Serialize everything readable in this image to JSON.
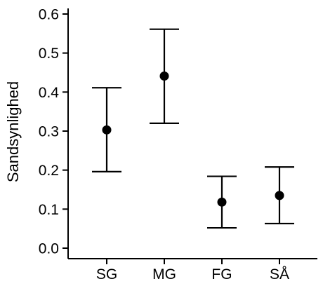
{
  "chart_data": {
    "type": "scatter",
    "title": "",
    "xlabel": "",
    "ylabel": "Sandsynlighed",
    "categories": [
      "SG",
      "MG",
      "FG",
      "SÅ"
    ],
    "series": [
      {
        "values": [
          0.303,
          0.441,
          0.118,
          0.135
        ],
        "lower": [
          0.196,
          0.32,
          0.052,
          0.063
        ],
        "upper": [
          0.411,
          0.561,
          0.184,
          0.208
        ]
      }
    ],
    "ylim": [
      0.0,
      0.6
    ],
    "yticks": [
      "0.0",
      "0.1",
      "0.2",
      "0.3",
      "0.4",
      "0.5",
      "0.6"
    ],
    "grid": false,
    "legend": "none"
  }
}
